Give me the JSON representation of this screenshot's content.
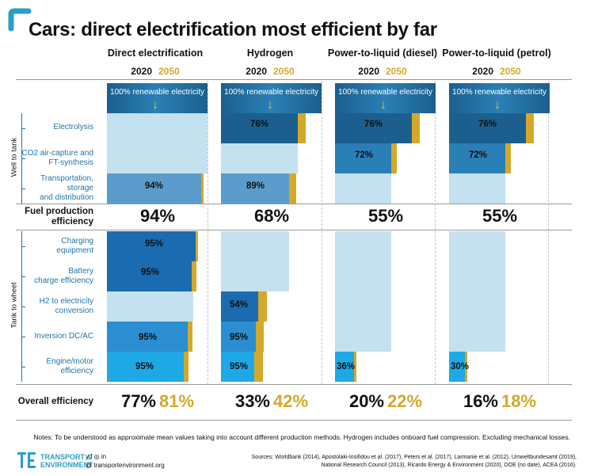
{
  "title": "Cars: direct electrification most efficient by far",
  "years": {
    "y2020": "2020",
    "y2050": "2050"
  },
  "columns": [
    {
      "name": "Direct electrification"
    },
    {
      "name": "Hydrogen"
    },
    {
      "name": "Power-to-liquid (diesel)"
    },
    {
      "name": "Power-to-liquid (petrol)"
    }
  ],
  "renewable_label": "100% renewable electricity",
  "groups": {
    "well_to_tank": "Well to tank",
    "tank_to_wheel": "Tank to wheel"
  },
  "row_labels": {
    "electrolysis": "Electrolysis",
    "co2_line1": "CO2 air-capture and",
    "co2_line2": "FT-synthesis",
    "transport_line1": "Transportation,",
    "transport_line2": "storage",
    "transport_line3": "and distribution",
    "fuel_line1": "Fuel production",
    "fuel_line2": "efficiency",
    "charging_line1": "Charging",
    "charging_line2": "equipment",
    "battery_line1": "Battery",
    "battery_line2": "charge efficiency",
    "h2_line1": "H2 to electricity",
    "h2_line2": "conversion",
    "inversion": "Inversion DC/AC",
    "engine_line1": "Engine/motor",
    "engine_line2": "efficiency",
    "overall": "Overall efficiency"
  },
  "colors": {
    "dark_blue": "#1b5f8e",
    "mid_blue": "#2a7fb6",
    "light_blue": "#c4e1ef",
    "gold": "#d4a82a"
  },
  "chart_data": {
    "type": "bar",
    "title": "Cars: direct electrification most efficient by far",
    "categories": [
      "Direct electrification",
      "Hydrogen",
      "Power-to-liquid (diesel)",
      "Power-to-liquid (petrol)"
    ],
    "steps": {
      "electrolysis": {
        "labels": [
          "",
          "76%",
          "76%",
          "76%"
        ]
      },
      "co2_air_capture_ft_synthesis": {
        "labels": [
          "",
          "",
          "72%",
          "72%"
        ]
      },
      "transportation_storage_distribution": {
        "labels": [
          "94%",
          "89%",
          "",
          ""
        ]
      },
      "charging_equipment": {
        "labels": [
          "95%",
          "",
          "",
          ""
        ]
      },
      "battery_charge_efficiency": {
        "labels": [
          "95%",
          "",
          "",
          ""
        ]
      },
      "h2_to_electricity_conversion": {
        "labels": [
          "",
          "54%",
          "",
          ""
        ]
      },
      "inversion_dc_ac": {
        "labels": [
          "95%",
          "95%",
          "",
          ""
        ]
      },
      "engine_motor_efficiency": {
        "labels": [
          "95%",
          "95%",
          "36%",
          "30%"
        ]
      }
    },
    "fuel_production_efficiency": [
      "94%",
      "68%",
      "55%",
      "55%"
    ],
    "overall_efficiency": [
      {
        "y2020": "77%",
        "y2050": "81%"
      },
      {
        "y2020": "33%",
        "y2050": "42%"
      },
      {
        "y2020": "20%",
        "y2050": "22%"
      },
      {
        "y2020": "16%",
        "y2050": "18%"
      }
    ]
  },
  "notes": "Notes: To be understood as approximate mean values taking into account different production methods. Hydrogen includes onboard fuel compression. Excluding mechanical losses.",
  "sources": {
    "line1": "Sources: Worldbank (2014), Apostolaki-Iosifidou et al. (2017), Peters et al. (2017), Larmanie et al. (2012), Umweltbundesamt (2019),",
    "line2": "National Research Council (2013), Ricardo Energy & Environment (2020), DOE (no date), ACEA (2016)."
  },
  "footer": {
    "org_line1": "TRANSPORT &",
    "org_line2": "ENVIRONMENT",
    "social_icons": [
      "twitter-icon",
      "facebook-icon",
      "instagram-icon",
      "linkedin-icon"
    ],
    "social": "y  f  ◎  in",
    "website": "@ transportenvironment.org"
  }
}
